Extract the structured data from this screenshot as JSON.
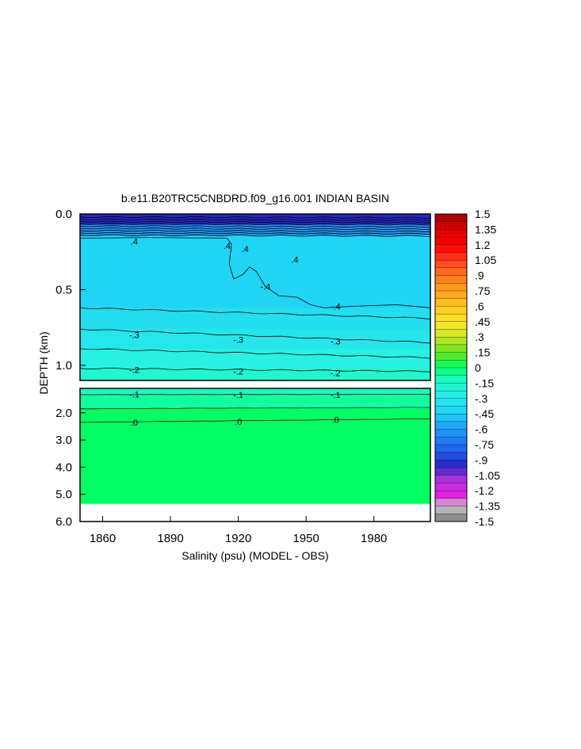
{
  "chart_data": {
    "type": "heatmap",
    "title": "b.e11.B20TRC5CNBDRD.f09_g16.001 INDIAN BASIN",
    "xlabel": "Salinity (psu) (MODEL - OBS)",
    "ylabel": "DEPTH (km)",
    "x_ticks": [
      "1860",
      "1890",
      "1920",
      "1950",
      "1980"
    ],
    "x_tick_values": [
      1860,
      1890,
      1920,
      1950,
      1980
    ],
    "xlim": [
      1850,
      2005
    ],
    "upper_panel": {
      "depth_range": [
        0.0,
        1.1
      ],
      "y_ticks": [
        "0.0",
        "0.5",
        "1.0"
      ],
      "y_tick_values": [
        0.0,
        0.5,
        1.0
      ]
    },
    "lower_panel": {
      "depth_range": [
        1.1,
        6.0
      ],
      "y_ticks": [
        "2.0",
        "3.0",
        "4.0",
        "5.0",
        "6.0"
      ],
      "y_tick_values": [
        2.0,
        3.0,
        4.0,
        5.0,
        6.0
      ],
      "seafloor_depth_km": 5.35
    },
    "colorbar": {
      "labels": [
        "1.5",
        "1.35",
        "1.2",
        "1.05",
        ".9",
        ".75",
        ".6",
        ".45",
        ".3",
        ".15",
        "0",
        "-.15",
        "-.3",
        "-.45",
        "-.6",
        "-.75",
        "-.9",
        "-1.05",
        "-1.2",
        "-1.35",
        "-1.5"
      ],
      "min": -1.5,
      "max": 1.5,
      "step": 0.075
    },
    "contour_labels": [
      {
        "text": ".4",
        "x": 1874,
        "depth": 0.18
      },
      {
        "text": ".4",
        "x": 1915,
        "depth": 0.21
      },
      {
        "text": ".4",
        "x": 1923,
        "depth": 0.23
      },
      {
        "text": "-.4",
        "x": 1932,
        "depth": 0.48
      },
      {
        "text": ".4",
        "x": 1945,
        "depth": 0.3
      },
      {
        "text": "-.4",
        "x": 1963,
        "depth": 0.61
      },
      {
        "text": "-.3",
        "x": 1874,
        "depth": 0.8
      },
      {
        "text": "-.3",
        "x": 1920,
        "depth": 0.83
      },
      {
        "text": "-.3",
        "x": 1963,
        "depth": 0.84
      },
      {
        "text": "-.2",
        "x": 1874,
        "depth": 1.03
      },
      {
        "text": "-.2",
        "x": 1920,
        "depth": 1.04
      },
      {
        "text": "-.2",
        "x": 1963,
        "depth": 1.05
      },
      {
        "text": "-.1",
        "x": 1874,
        "depth": 1.32
      },
      {
        "text": "-.1",
        "x": 1920,
        "depth": 1.33
      },
      {
        "text": "-.1",
        "x": 1963,
        "depth": 1.33
      },
      {
        "text": ".0",
        "x": 1874,
        "depth": 2.35
      },
      {
        "text": ".0",
        "x": 1920,
        "depth": 2.32
      },
      {
        "text": ".0",
        "x": 1963,
        "depth": 2.25
      }
    ],
    "field_bands_upper": [
      {
        "from_depth": 0.0,
        "to_depth": 0.07,
        "value": -0.95
      },
      {
        "from_depth": 0.07,
        "to_depth": 0.14,
        "value": -0.62
      },
      {
        "from_depth": 0.14,
        "to_depth": 0.62,
        "value": -0.44
      },
      {
        "from_depth": 0.62,
        "to_depth": 0.76,
        "value": -0.37
      },
      {
        "from_depth": 0.76,
        "to_depth": 0.89,
        "value": -0.32
      },
      {
        "from_depth": 0.89,
        "to_depth": 1.02,
        "value": -0.24
      },
      {
        "from_depth": 1.02,
        "to_depth": 1.1,
        "value": -0.17
      }
    ],
    "field_bands_lower": [
      {
        "from_depth": 1.1,
        "to_depth": 1.33,
        "value": -0.12
      },
      {
        "from_depth": 1.33,
        "to_depth": 1.85,
        "value": -0.06
      },
      {
        "from_depth": 1.85,
        "to_depth": 5.35,
        "value": 0.0
      }
    ]
  }
}
